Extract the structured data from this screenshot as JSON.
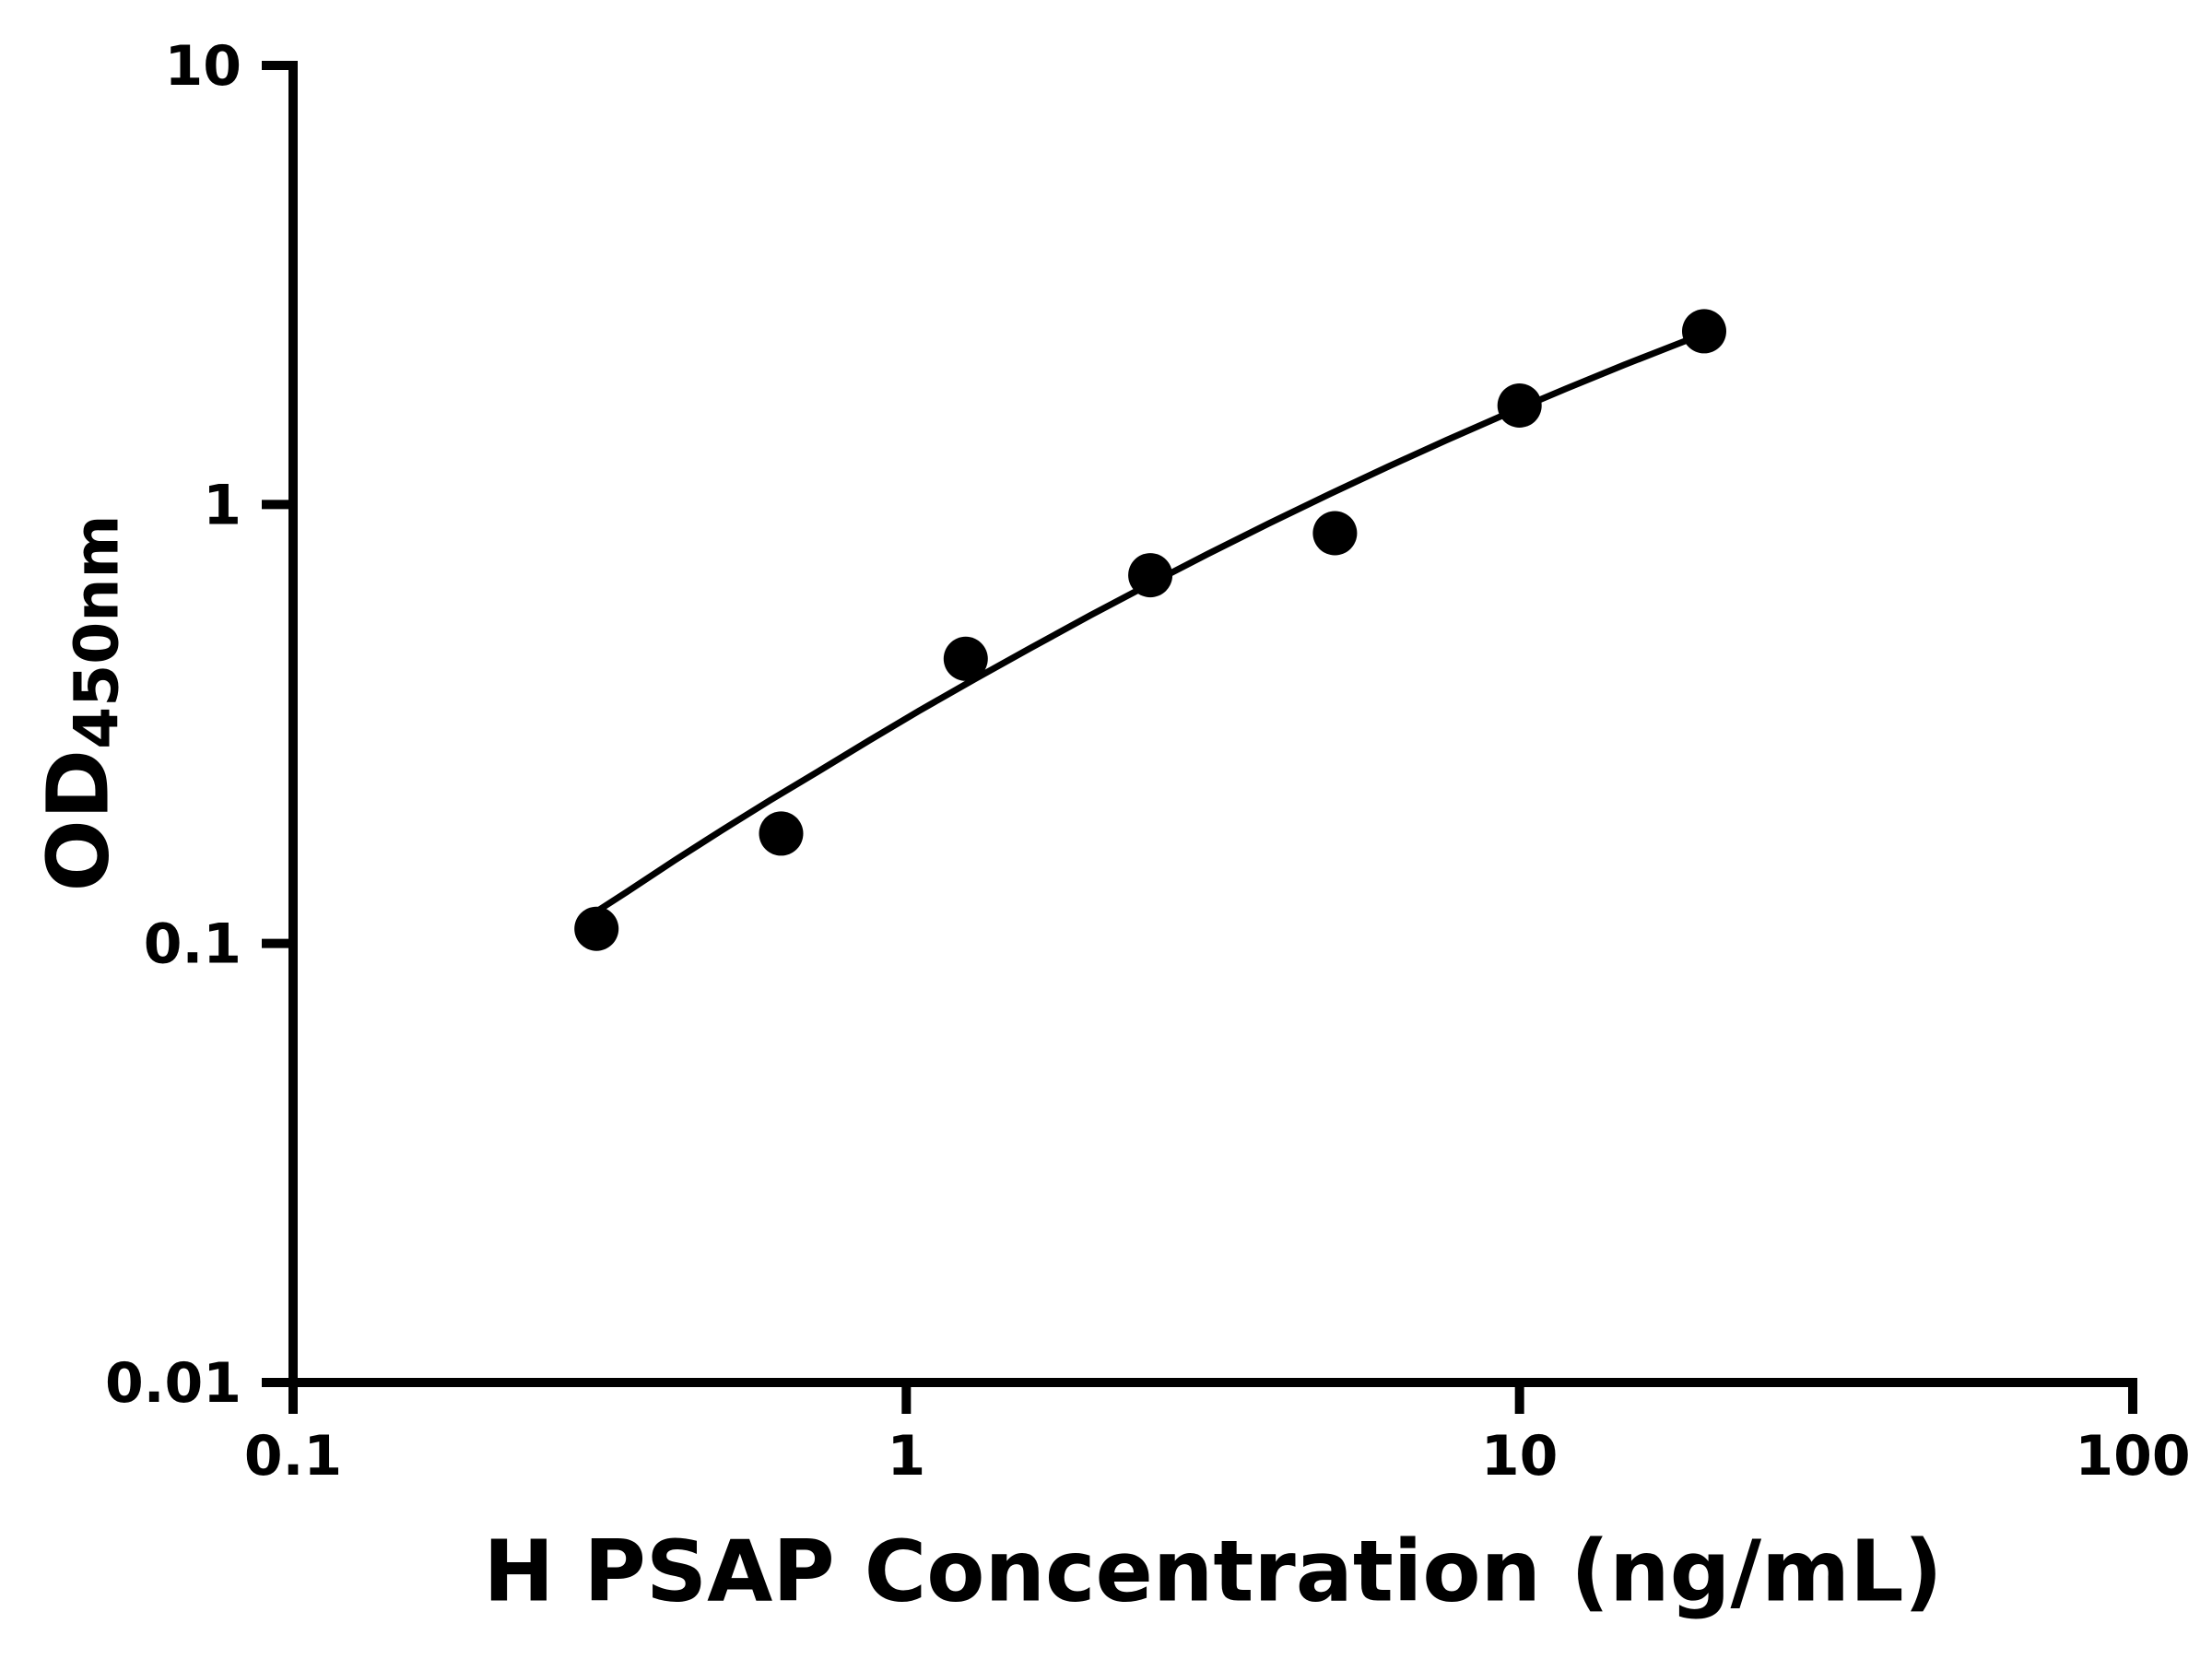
{
  "chart_data": {
    "type": "scatter",
    "xlabel": "H PSAP Concentration (ng/mL)",
    "ylabel": "OD",
    "ylabel_subscript": "450nm",
    "x_scale": "log",
    "y_scale": "log",
    "xlim": [
      0.1,
      100
    ],
    "ylim": [
      0.01,
      10
    ],
    "x_ticks": [
      0.1,
      1,
      10,
      100
    ],
    "x_tick_labels": [
      "0.1",
      "1",
      "10",
      "100"
    ],
    "y_ticks": [
      0.01,
      0.1,
      1,
      10
    ],
    "y_tick_labels": [
      "0.01",
      "0.1",
      "1",
      "10"
    ],
    "grid": false,
    "legend": null,
    "marker_color": "#000000",
    "line_color": "#000000",
    "axis_color": "#000000",
    "points": {
      "x": [
        0.3125,
        0.625,
        1.25,
        2.5,
        5,
        10,
        20
      ],
      "y": [
        0.108,
        0.178,
        0.445,
        0.69,
        0.86,
        1.68,
        2.48
      ]
    },
    "fit_curve": {
      "x": [
        0.3,
        0.35,
        0.42,
        0.5,
        0.6,
        0.72,
        0.87,
        1.05,
        1.3,
        1.6,
        2.0,
        2.5,
        3.1,
        3.9,
        4.9,
        6.1,
        7.6,
        9.5,
        11.9,
        14.8,
        18.5,
        20.5
      ],
      "y": [
        0.114,
        0.131,
        0.155,
        0.181,
        0.212,
        0.247,
        0.29,
        0.339,
        0.402,
        0.472,
        0.56,
        0.66,
        0.771,
        0.905,
        1.056,
        1.219,
        1.401,
        1.606,
        1.835,
        2.078,
        2.349,
        2.482
      ]
    }
  }
}
